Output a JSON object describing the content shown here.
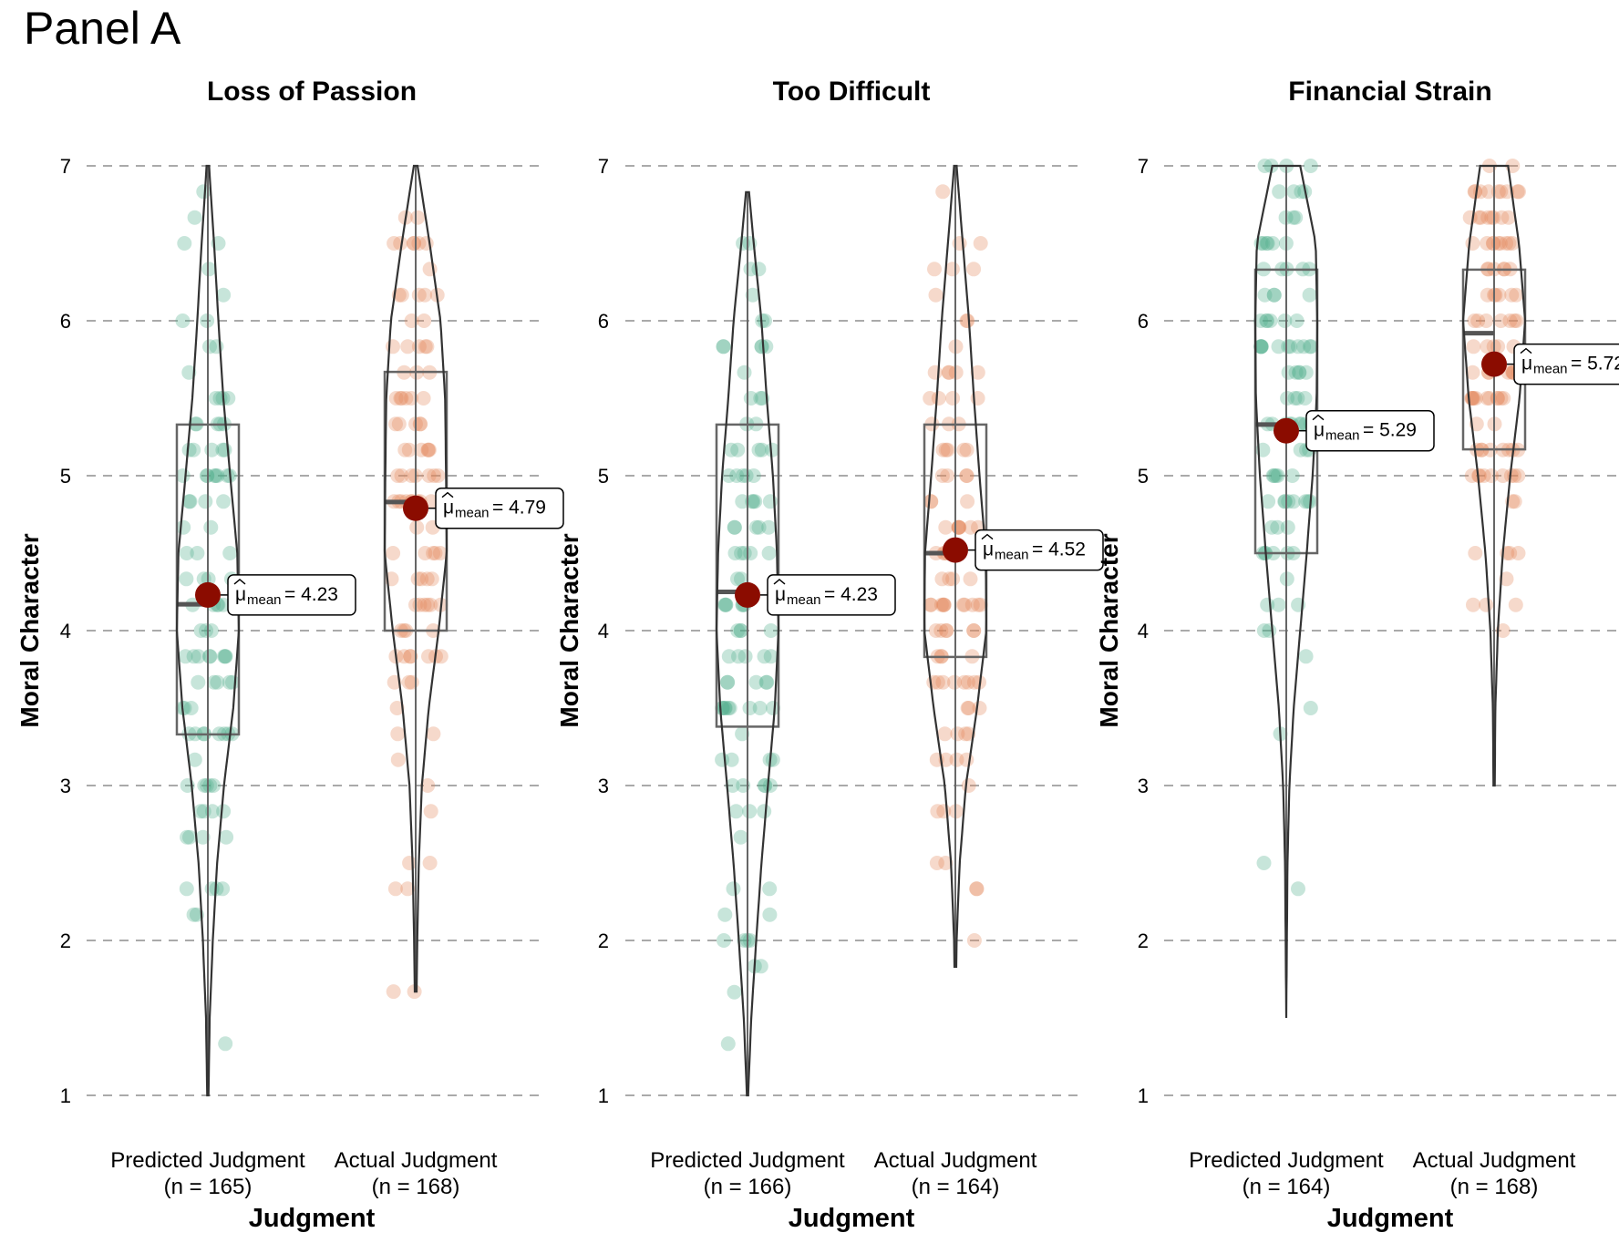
{
  "panel_title": "Panel A",
  "colors": {
    "predicted": "#52ad8d",
    "actual": "#e48a5c",
    "mean_dot": "#8b0c00",
    "outline": "#333333",
    "grid": "#aaaaaa"
  },
  "chart_data": [
    {
      "type": "violin",
      "title": "Loss of Passion",
      "xlabel": "Judgment",
      "ylabel": "Moral Character",
      "ylim": [
        1,
        7
      ],
      "yticks": [
        1,
        2,
        3,
        4,
        5,
        6,
        7
      ],
      "grid": "horizontal dashed",
      "categories": [
        {
          "line1": "Predicted Judgment",
          "line2": "(n = 165)",
          "group": "predicted",
          "n": 165,
          "min": 1,
          "q1": 3.33,
          "median": 4.17,
          "q3": 5.33,
          "max": 7,
          "mean": 4.23,
          "label_value": "4.23",
          "mean_label": "= 4.23",
          "density": [
            [
              1,
              0.02
            ],
            [
              1.5,
              0.06
            ],
            [
              2,
              0.16
            ],
            [
              2.5,
              0.3
            ],
            [
              3,
              0.52
            ],
            [
              3.5,
              0.82
            ],
            [
              4,
              1.0
            ],
            [
              4.5,
              0.95
            ],
            [
              5,
              0.72
            ],
            [
              5.5,
              0.5
            ],
            [
              6,
              0.34
            ],
            [
              6.5,
              0.2
            ],
            [
              7,
              0.04
            ]
          ]
        },
        {
          "line1": "Actual Judgment",
          "line2": "(n = 168)",
          "group": "actual",
          "n": 168,
          "min": 1.67,
          "q1": 4.0,
          "median": 4.83,
          "q3": 5.67,
          "max": 7,
          "mean": 4.79,
          "label_value": "4.79",
          "mean_label": "= 4.79",
          "density": [
            [
              1,
              0.0
            ],
            [
              1.5,
              0.02
            ],
            [
              2,
              0.05
            ],
            [
              2.5,
              0.1
            ],
            [
              3,
              0.2
            ],
            [
              3.5,
              0.42
            ],
            [
              4,
              0.74
            ],
            [
              4.5,
              1.0
            ],
            [
              5,
              0.98
            ],
            [
              5.5,
              0.95
            ],
            [
              6,
              0.8
            ],
            [
              6.5,
              0.45
            ],
            [
              7,
              0.06
            ]
          ]
        }
      ]
    },
    {
      "type": "violin",
      "title": "Too Difficult",
      "xlabel": "Judgment",
      "ylabel": "Moral Character",
      "ylim": [
        1,
        7
      ],
      "yticks": [
        1,
        2,
        3,
        4,
        5,
        6,
        7
      ],
      "grid": "horizontal dashed",
      "categories": [
        {
          "line1": "Predicted Judgment",
          "line2": "(n = 166)",
          "group": "predicted",
          "n": 166,
          "min": 1,
          "q1": 3.38,
          "median": 4.25,
          "q3": 5.33,
          "max": 6.83,
          "mean": 4.23,
          "label_value": "4.23",
          "mean_label": "= 4.23",
          "density": [
            [
              1,
              0.02
            ],
            [
              1.5,
              0.12
            ],
            [
              2,
              0.28
            ],
            [
              2.5,
              0.45
            ],
            [
              3,
              0.66
            ],
            [
              3.5,
              0.88
            ],
            [
              4,
              1.0
            ],
            [
              4.5,
              0.95
            ],
            [
              5,
              0.82
            ],
            [
              5.5,
              0.62
            ],
            [
              6,
              0.45
            ],
            [
              6.5,
              0.2
            ],
            [
              6.83,
              0.05
            ]
          ]
        },
        {
          "line1": "Actual Judgment",
          "line2": "(n = 164)",
          "group": "actual",
          "n": 164,
          "min": 1.83,
          "q1": 3.83,
          "median": 4.5,
          "q3": 5.33,
          "max": 7,
          "mean": 4.52,
          "label_value": "4.52",
          "mean_label": "= 4.52",
          "density": [
            [
              1,
              0.0
            ],
            [
              1.5,
              0.01
            ],
            [
              2,
              0.04
            ],
            [
              2.5,
              0.14
            ],
            [
              3,
              0.34
            ],
            [
              3.5,
              0.7
            ],
            [
              4,
              1.0
            ],
            [
              4.5,
              0.98
            ],
            [
              5,
              0.78
            ],
            [
              5.5,
              0.6
            ],
            [
              6,
              0.44
            ],
            [
              6.5,
              0.24
            ],
            [
              7,
              0.04
            ]
          ]
        }
      ]
    },
    {
      "type": "violin",
      "title": "Financial Strain",
      "xlabel": "Judgment",
      "ylabel": "Moral Character",
      "ylim": [
        1,
        7
      ],
      "yticks": [
        1,
        2,
        3,
        4,
        5,
        6,
        7
      ],
      "grid": "horizontal dashed",
      "categories": [
        {
          "line1": "Predicted Judgment",
          "line2": "(n = 164)",
          "group": "predicted",
          "n": 164,
          "min": 1.5,
          "q1": 4.5,
          "median": 5.33,
          "q3": 6.33,
          "max": 7,
          "mean": 5.29,
          "label_value": "5.29",
          "mean_label": "= 5.29",
          "density": [
            [
              1.5,
              0.0
            ],
            [
              2,
              0.02
            ],
            [
              2.5,
              0.04
            ],
            [
              3,
              0.1
            ],
            [
              3.5,
              0.24
            ],
            [
              4,
              0.45
            ],
            [
              4.5,
              0.66
            ],
            [
              5,
              0.85
            ],
            [
              5.5,
              0.98
            ],
            [
              6,
              1.0
            ],
            [
              6.5,
              0.95
            ],
            [
              7,
              0.45
            ]
          ]
        },
        {
          "line1": "Actual Judgment",
          "line2": "(n = 168)",
          "group": "actual",
          "n": 168,
          "min": 3,
          "q1": 5.17,
          "median": 5.92,
          "q3": 6.33,
          "max": 7,
          "mean": 5.72,
          "label_value": "5.72",
          "mean_label": "= 5.72",
          "density": [
            [
              3,
              0.02
            ],
            [
              3.5,
              0.04
            ],
            [
              4,
              0.12
            ],
            [
              4.5,
              0.28
            ],
            [
              5,
              0.52
            ],
            [
              5.5,
              0.82
            ],
            [
              6,
              1.0
            ],
            [
              6.5,
              0.8
            ],
            [
              7,
              0.45
            ]
          ]
        }
      ]
    }
  ]
}
